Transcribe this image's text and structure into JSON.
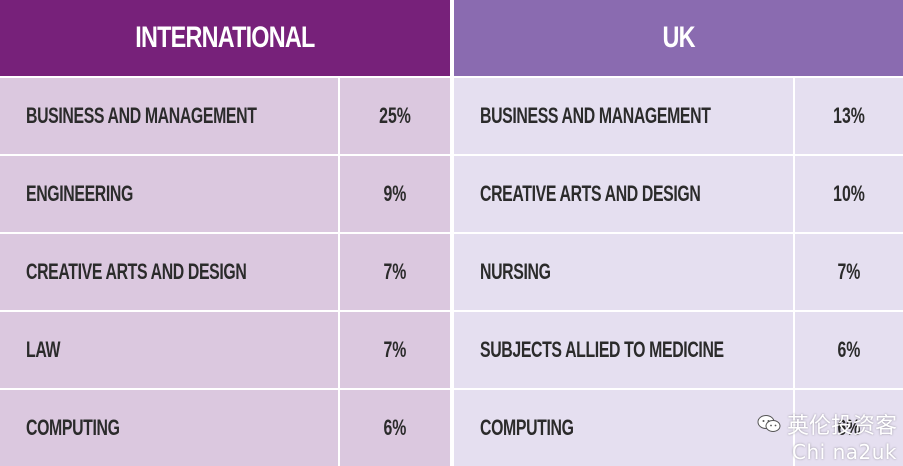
{
  "chart_data": {
    "type": "table",
    "tables": [
      {
        "heading": "INTERNATIONAL",
        "header_color": "#77217a",
        "row_color": "#dbc8df",
        "rows": [
          {
            "subject": "BUSINESS AND MANAGEMENT",
            "percent": "25%"
          },
          {
            "subject": "ENGINEERING",
            "percent": "9%"
          },
          {
            "subject": "CREATIVE ARTS AND DESIGN",
            "percent": "7%"
          },
          {
            "subject": "LAW",
            "percent": "7%"
          },
          {
            "subject": "COMPUTING",
            "percent": "6%"
          }
        ]
      },
      {
        "heading": "UK",
        "header_color": "#8a6bb0",
        "row_color": "#e5dff0",
        "rows": [
          {
            "subject": "BUSINESS AND MANAGEMENT",
            "percent": "13%"
          },
          {
            "subject": "CREATIVE ARTS AND DESIGN",
            "percent": "10%"
          },
          {
            "subject": "NURSING",
            "percent": "7%"
          },
          {
            "subject": "SUBJECTS ALLIED TO MEDICINE",
            "percent": "6%"
          },
          {
            "subject": "COMPUTING",
            "percent": "6%"
          }
        ]
      }
    ]
  },
  "watermark": {
    "line1": "英伦投资客",
    "line2": "Chi na2uk",
    "icon": "wechat-icon"
  }
}
